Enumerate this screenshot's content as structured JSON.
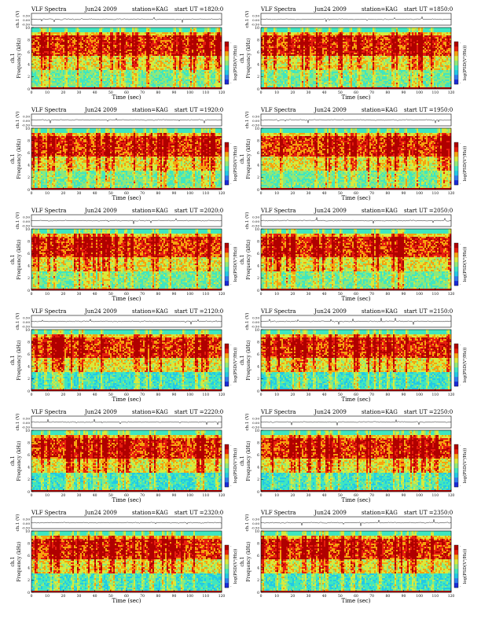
{
  "chart_data": [
    {
      "type": "heatmap",
      "title": "VLF Spectra",
      "date": "Jun24 2009",
      "station": "station=KAG",
      "start": "start  UT  =1820:0",
      "top_ylabel": "ch.1 (V)",
      "top_yticks": [
        "0.50",
        "0.00",
        "-0.50"
      ],
      "ylabel": "Frequency (kHz)",
      "channel_label": "ch.1",
      "xlabel": "Time (sec)",
      "xticks": [
        0,
        10,
        20,
        30,
        40,
        50,
        60,
        70,
        80,
        90,
        100,
        110,
        120
      ],
      "xlim": [
        0,
        120
      ],
      "yticks": [
        0,
        2,
        4,
        6,
        8,
        10
      ],
      "ylim": [
        0,
        10
      ],
      "colorbar_label": "log(PSD(V²/Hz))",
      "colorbar_ticks": [
        "-",
        "-"
      ]
    },
    {
      "type": "heatmap",
      "title": "VLF Spectra",
      "date": "Jun24 2009",
      "station": "station=KAG",
      "start": "start  UT  =1850:0",
      "top_ylabel": "ch.1 (V)",
      "top_yticks": [
        "0.50",
        "0.00",
        "-0.50"
      ],
      "ylabel": "Frequency (kHz)",
      "channel_label": "ch.1",
      "xlabel": "Time (sec)",
      "xticks": [
        0,
        10,
        20,
        30,
        40,
        50,
        60,
        70,
        80,
        90,
        100,
        110,
        120
      ],
      "xlim": [
        0,
        120
      ],
      "yticks": [
        0,
        2,
        4,
        6,
        8,
        10
      ],
      "ylim": [
        0,
        10
      ],
      "colorbar_label": "log(PSD(V²/Hz))",
      "colorbar_ticks": [
        "-",
        "-"
      ]
    },
    {
      "type": "heatmap",
      "title": "VLF Spectra",
      "date": "Jun24 2009",
      "station": "station=KAG",
      "start": "start  UT  =1920:0",
      "top_ylabel": "ch.1 (V)",
      "top_yticks": [
        "0.50",
        "0.00",
        "-0.50"
      ],
      "ylabel": "Frequency (kHz)",
      "channel_label": "ch.1",
      "xlabel": "Time (sec)",
      "xticks": [
        0,
        10,
        20,
        30,
        40,
        50,
        60,
        70,
        80,
        90,
        100,
        110,
        120
      ],
      "xlim": [
        0,
        120
      ],
      "yticks": [
        0,
        2,
        4,
        6,
        8,
        10
      ],
      "ylim": [
        0,
        10
      ],
      "colorbar_label": "log(PSD(V²/Hz))",
      "colorbar_ticks": [
        "-",
        "-"
      ]
    },
    {
      "type": "heatmap",
      "title": "VLF Spectra",
      "date": "Jun24 2009",
      "station": "station=KAG",
      "start": "start  UT  =1950:0",
      "top_ylabel": "ch.1 (V)",
      "top_yticks": [
        "0.50",
        "0.00",
        "-0.50"
      ],
      "ylabel": "Frequency (kHz)",
      "channel_label": "ch.1",
      "xlabel": "Time (sec)",
      "xticks": [
        0,
        10,
        20,
        30,
        40,
        50,
        60,
        70,
        80,
        90,
        100,
        110,
        120
      ],
      "xlim": [
        0,
        120
      ],
      "yticks": [
        0,
        2,
        4,
        6,
        8,
        10
      ],
      "ylim": [
        0,
        10
      ],
      "colorbar_label": "log(PSD(V²/Hz))",
      "colorbar_ticks": [
        "-",
        "-"
      ]
    },
    {
      "type": "heatmap",
      "title": "VLF Spectra",
      "date": "Jun24 2009",
      "station": "station=KAG",
      "start": "start  UT  =2020:0",
      "top_ylabel": "ch.1 (V)",
      "top_yticks": [
        "0.50",
        "0.00",
        "-0.50"
      ],
      "ylabel": "Frequency (kHz)",
      "channel_label": "ch.1",
      "xlabel": "Time (sec)",
      "xticks": [
        0,
        10,
        20,
        30,
        40,
        50,
        60,
        70,
        80,
        90,
        100,
        110,
        120
      ],
      "xlim": [
        0,
        120
      ],
      "yticks": [
        0,
        2,
        4,
        6,
        8,
        10
      ],
      "ylim": [
        0,
        10
      ],
      "colorbar_label": "log(PSD(V²/Hz))",
      "colorbar_ticks": [
        "-",
        "-"
      ]
    },
    {
      "type": "heatmap",
      "title": "VLF Spectra",
      "date": "Jun24 2009",
      "station": "station=KAG",
      "start": "start  UT  =2050:0",
      "top_ylabel": "ch.1 (V)",
      "top_yticks": [
        "0.50",
        "0.00",
        "-0.50"
      ],
      "ylabel": "Frequency (kHz)",
      "channel_label": "ch.1",
      "xlabel": "Time (sec)",
      "xticks": [
        0,
        10,
        20,
        30,
        40,
        50,
        60,
        70,
        80,
        90,
        100,
        110,
        120
      ],
      "xlim": [
        0,
        120
      ],
      "yticks": [
        0,
        2,
        4,
        6,
        8,
        10
      ],
      "ylim": [
        0,
        10
      ],
      "colorbar_label": "log(PSD(V²/Hz))",
      "colorbar_ticks": [
        "-",
        "-"
      ]
    },
    {
      "type": "heatmap",
      "title": "VLF Spectra",
      "date": "Jun24 2009",
      "station": "station=KAG",
      "start": "start  UT  =2120:0",
      "top_ylabel": "ch.1 (V)",
      "top_yticks": [
        "0.50",
        "0.00",
        "-0.50"
      ],
      "ylabel": "Frequency (kHz)",
      "channel_label": "ch.1",
      "xlabel": "Time (sec)",
      "xticks": [
        0,
        10,
        20,
        30,
        40,
        50,
        60,
        70,
        80,
        90,
        100,
        110,
        120
      ],
      "xlim": [
        0,
        120
      ],
      "yticks": [
        0,
        2,
        4,
        6,
        8,
        10
      ],
      "ylim": [
        0,
        10
      ],
      "colorbar_label": "log(PSD(V²/Hz))",
      "colorbar_ticks": [
        "-",
        "-"
      ]
    },
    {
      "type": "heatmap",
      "title": "VLF Spectra",
      "date": "Jun24 2009",
      "station": "station=KAG",
      "start": "start  UT  =2150:0",
      "top_ylabel": "ch.1 (V)",
      "top_yticks": [
        "0.50",
        "0.00",
        "-0.50"
      ],
      "ylabel": "Frequency (kHz)",
      "channel_label": "ch.1",
      "xlabel": "Time (sec)",
      "xticks": [
        0,
        10,
        20,
        30,
        40,
        50,
        60,
        70,
        80,
        90,
        100,
        110,
        120
      ],
      "xlim": [
        0,
        120
      ],
      "yticks": [
        0,
        2,
        4,
        6,
        8,
        10
      ],
      "ylim": [
        0,
        10
      ],
      "colorbar_label": "log(PSD(V²/Hz))",
      "colorbar_ticks": [
        "-",
        "-"
      ]
    },
    {
      "type": "heatmap",
      "title": "VLF Spectra",
      "date": "Jun24 2009",
      "station": "station=KAG",
      "start": "start  UT  =2220:0",
      "top_ylabel": "ch.1 (V)",
      "top_yticks": [
        "0.50",
        "0.00",
        "-0.50"
      ],
      "ylabel": "Frequency (kHz)",
      "channel_label": "ch.1",
      "xlabel": "Time (sec)",
      "xticks": [
        0,
        10,
        20,
        30,
        40,
        50,
        60,
        70,
        80,
        90,
        100,
        110,
        120
      ],
      "xlim": [
        0,
        120
      ],
      "yticks": [
        0,
        2,
        4,
        6,
        8,
        10
      ],
      "ylim": [
        0,
        10
      ],
      "colorbar_label": "log(PSD(V²/Hz))",
      "colorbar_ticks": [
        "-",
        "-"
      ]
    },
    {
      "type": "heatmap",
      "title": "VLF Spectra",
      "date": "Jun24 2009",
      "station": "station=KAG",
      "start": "start  UT  =2250:0",
      "top_ylabel": "ch.1 (V)",
      "top_yticks": [
        "0.50",
        "0.00",
        "-0.50"
      ],
      "ylabel": "Frequency (kHz)",
      "channel_label": "ch.1",
      "xlabel": "Time (sec)",
      "xticks": [
        0,
        10,
        20,
        30,
        40,
        50,
        60,
        70,
        80,
        90,
        100,
        110,
        120
      ],
      "xlim": [
        0,
        120
      ],
      "yticks": [
        0,
        2,
        4,
        6,
        8,
        10
      ],
      "ylim": [
        0,
        10
      ],
      "colorbar_label": "log(PSD(V²/Hz))",
      "colorbar_ticks": [
        "-",
        "-"
      ]
    },
    {
      "type": "heatmap",
      "title": "VLF Spectra",
      "date": "Jun24 2009",
      "station": "station=KAG",
      "start": "start  UT  =2320:0",
      "top_ylabel": "ch.1 (V)",
      "top_yticks": [
        "0.50",
        "0.00",
        "-0.50"
      ],
      "ylabel": "Frequency (kHz)",
      "channel_label": "ch.1",
      "xlabel": "Time (sec)",
      "xticks": [
        0,
        10,
        20,
        30,
        40,
        50,
        60,
        70,
        80,
        90,
        100,
        110,
        120
      ],
      "xlim": [
        0,
        120
      ],
      "yticks": [
        0,
        2,
        4,
        6,
        8,
        10
      ],
      "ylim": [
        0,
        10
      ],
      "colorbar_label": "log(PSD(V²/Hz))",
      "colorbar_ticks": [
        "-",
        "-"
      ]
    },
    {
      "type": "heatmap",
      "title": "VLF Spectra",
      "date": "Jun24 2009",
      "station": "station=KAG",
      "start": "start  UT  =2350:0",
      "top_ylabel": "ch.1 (V)",
      "top_yticks": [
        "0.50",
        "0.00",
        "-0.50"
      ],
      "ylabel": "Frequency (kHz)",
      "channel_label": "ch.1",
      "xlabel": "Time (sec)",
      "xticks": [
        0,
        10,
        20,
        30,
        40,
        50,
        60,
        70,
        80,
        90,
        100,
        110,
        120
      ],
      "xlim": [
        0,
        120
      ],
      "yticks": [
        0,
        2,
        4,
        6,
        8,
        10
      ],
      "ylim": [
        0,
        10
      ],
      "colorbar_label": "log(PSD(V²/Hz))",
      "colorbar_ticks": [
        "-",
        "-"
      ]
    }
  ],
  "colormap": [
    "#1a2bd8",
    "#2f7df0",
    "#22c8e6",
    "#3fe6c0",
    "#8ee87a",
    "#d8ea3c",
    "#f6a20e",
    "#e61e10",
    "#b00000"
  ]
}
